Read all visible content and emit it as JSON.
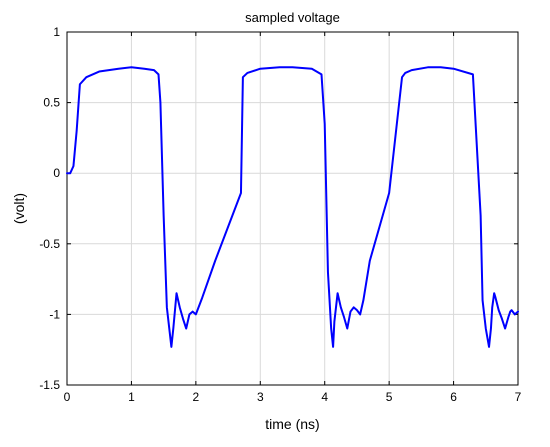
{
  "chart_data": {
    "type": "line",
    "title": "sampled voltage",
    "xlabel": "time (ns)",
    "ylabel": "(volt)",
    "xlim": [
      0,
      7
    ],
    "ylim": [
      -1.5,
      1
    ],
    "xticks": [
      0,
      1,
      2,
      3,
      4,
      5,
      6,
      7
    ],
    "yticks": [
      1,
      0.5,
      0,
      -0.5,
      -1,
      -1.5
    ],
    "xtick_labels": [
      "0",
      "1",
      "2",
      "3",
      "4",
      "5",
      "6",
      "7"
    ],
    "ytick_labels": [
      "1",
      "0.5",
      "0",
      "-0.5",
      "-1",
      "-1.5"
    ],
    "grid": true,
    "series": [
      {
        "color": "#0000ff",
        "x": [
          0.0,
          0.05,
          0.1,
          0.15,
          0.2,
          0.3,
          0.5,
          0.8,
          1.0,
          1.2,
          1.35,
          1.42,
          1.45,
          1.5,
          1.55,
          1.6,
          1.62,
          1.65,
          1.7,
          1.75,
          1.8,
          1.85,
          1.9,
          1.95,
          2.0,
          2.1,
          2.3,
          2.5,
          2.7,
          2.73,
          2.8,
          3.0,
          3.3,
          3.5,
          3.8,
          3.95,
          4.0,
          4.05,
          4.1,
          4.13,
          4.15,
          4.2,
          4.25,
          4.3,
          4.35,
          4.4,
          4.45,
          4.5,
          4.55,
          4.6,
          4.7,
          5.0,
          5.2,
          5.25,
          5.35,
          5.6,
          5.8,
          6.0,
          6.3,
          6.42,
          6.45,
          6.5,
          6.55,
          6.58,
          6.6,
          6.63,
          6.65,
          6.7,
          6.75,
          6.8,
          6.85,
          6.88,
          6.9,
          6.95,
          7.0
        ],
        "y": [
          0.0,
          0.0,
          0.05,
          0.3,
          0.63,
          0.68,
          0.72,
          0.74,
          0.75,
          0.74,
          0.73,
          0.7,
          0.5,
          -0.3,
          -0.95,
          -1.15,
          -1.23,
          -1.1,
          -0.85,
          -0.95,
          -1.03,
          -1.1,
          -1.0,
          -0.98,
          -1.0,
          -0.88,
          -0.62,
          -0.38,
          -0.14,
          0.68,
          0.71,
          0.74,
          0.75,
          0.75,
          0.74,
          0.7,
          0.35,
          -0.7,
          -1.1,
          -1.23,
          -1.05,
          -0.85,
          -0.95,
          -1.02,
          -1.1,
          -0.98,
          -0.95,
          -0.97,
          -1.0,
          -0.9,
          -0.62,
          -0.14,
          0.68,
          0.71,
          0.73,
          0.75,
          0.75,
          0.74,
          0.7,
          -0.3,
          -0.9,
          -1.1,
          -1.23,
          -1.1,
          -0.95,
          -0.85,
          -0.88,
          -0.97,
          -1.03,
          -1.1,
          -1.02,
          -0.98,
          -0.97,
          -1.0,
          -0.98
        ]
      }
    ]
  }
}
